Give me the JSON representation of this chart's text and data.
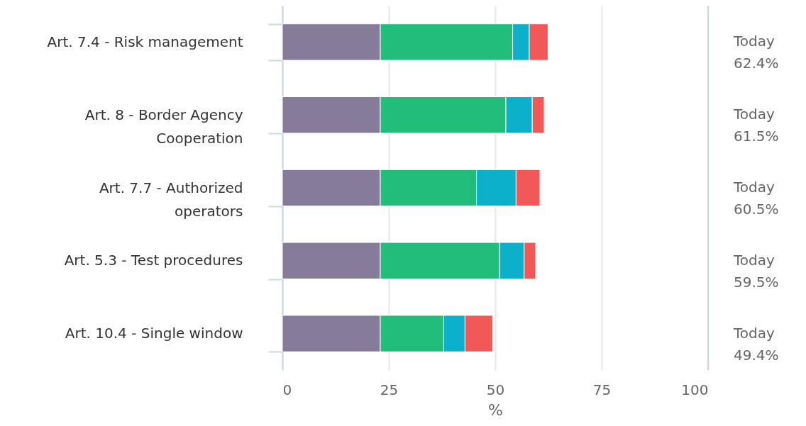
{
  "chart_data": {
    "type": "bar",
    "orientation": "horizontal",
    "stacked": true,
    "categories": [
      "Art. 7.4 - Risk management",
      "Art. 8 - Border Agency Cooperation",
      "Art. 7.7 - Authorized operators",
      "Art. 5.3 - Test procedures",
      "Art. 10.4 - Single window"
    ],
    "series": [
      {
        "color": "#877b9a",
        "values": [
          23,
          23,
          23,
          23,
          23
        ]
      },
      {
        "color": "#22bd7b",
        "values": [
          31.1,
          29.5,
          22.6,
          28,
          14.9
        ]
      },
      {
        "color": "#0cb0cb",
        "values": [
          3.9,
          6.2,
          9.3,
          5.8,
          5.0
        ]
      },
      {
        "color": "#f25858",
        "values": [
          4.4,
          2.8,
          5.6,
          2.7,
          6.5
        ]
      }
    ],
    "annotations": [
      "Today 62.4%",
      "Today 61.5%",
      "Today 60.5%",
      "Today 59.5%",
      "Today 49.4%"
    ],
    "xlabel": "%",
    "xlim": [
      0,
      100
    ],
    "xticks": [
      0,
      25,
      50,
      75,
      100
    ],
    "grid": "x"
  }
}
